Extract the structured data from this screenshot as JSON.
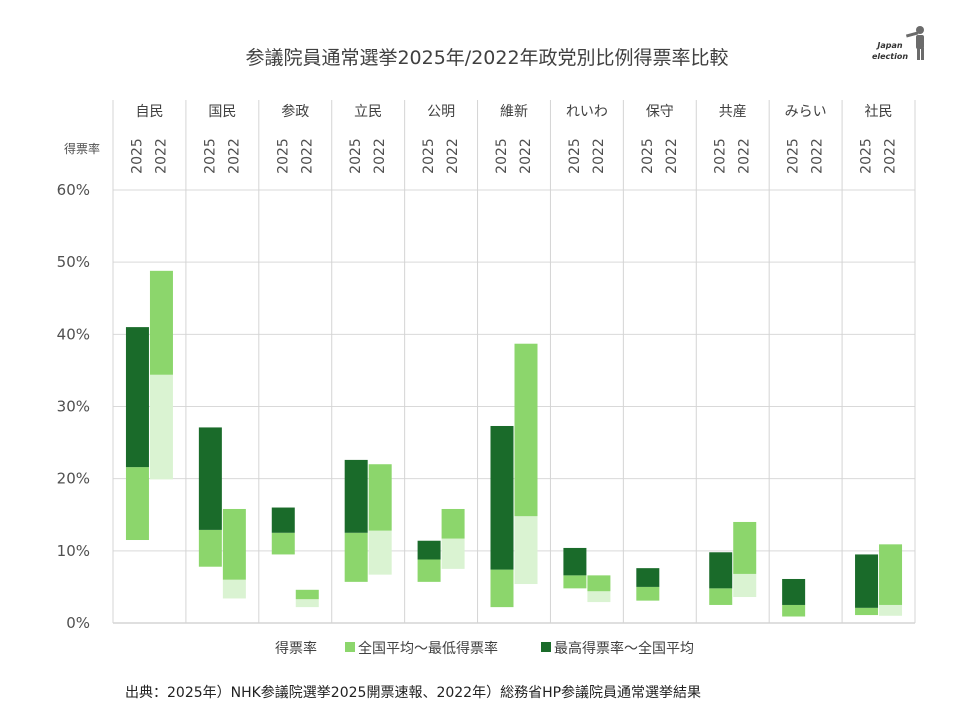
{
  "chart_data": {
    "type": "bar",
    "title": "参議院員通常選挙2025年/2022年政党別比例得票率比較",
    "ylabel": "得票率",
    "ylim": [
      0,
      60
    ],
    "yticks": [
      "0%",
      "10%",
      "20%",
      "30%",
      "40%",
      "50%",
      "60%"
    ],
    "years": [
      "2025",
      "2022"
    ],
    "grid": true,
    "legend_placement": "bottom",
    "legend_title": "得票率",
    "series": [
      {
        "name": "全国平均～最低得票率",
        "color": "#8cd66c",
        "color_faded": "#daf3d2"
      },
      {
        "name": "最高得票率～全国平均",
        "color": "#1a6b2a",
        "color_faded": "#8cd66c"
      }
    ],
    "parties": [
      {
        "name": "自民",
        "bars": [
          {
            "year": "2025",
            "low": 11.5,
            "avg": 21.6,
            "high": 41.0,
            "faded": false
          },
          {
            "year": "2022",
            "low": 19.9,
            "avg": 34.4,
            "high": 48.8,
            "faded": true
          }
        ]
      },
      {
        "name": "国民",
        "bars": [
          {
            "year": "2025",
            "low": 7.8,
            "avg": 12.9,
            "high": 27.1,
            "faded": false
          },
          {
            "year": "2022",
            "low": 3.4,
            "avg": 6.0,
            "high": 15.8,
            "faded": true
          }
        ]
      },
      {
        "name": "参政",
        "bars": [
          {
            "year": "2025",
            "low": 9.5,
            "avg": 12.5,
            "high": 16.0,
            "faded": false
          },
          {
            "year": "2022",
            "low": 2.2,
            "avg": 3.3,
            "high": 4.6,
            "faded": true
          }
        ]
      },
      {
        "name": "立民",
        "bars": [
          {
            "year": "2025",
            "low": 5.7,
            "avg": 12.5,
            "high": 22.6,
            "faded": false
          },
          {
            "year": "2022",
            "low": 6.7,
            "avg": 12.8,
            "high": 22.0,
            "faded": true
          }
        ]
      },
      {
        "name": "公明",
        "bars": [
          {
            "year": "2025",
            "low": 5.7,
            "avg": 8.8,
            "high": 11.4,
            "faded": false
          },
          {
            "year": "2022",
            "low": 7.5,
            "avg": 11.7,
            "high": 15.8,
            "faded": true
          }
        ]
      },
      {
        "name": "維新",
        "bars": [
          {
            "year": "2025",
            "low": 2.2,
            "avg": 7.4,
            "high": 27.3,
            "faded": false
          },
          {
            "year": "2022",
            "low": 5.4,
            "avg": 14.8,
            "high": 38.7,
            "faded": true
          }
        ]
      },
      {
        "name": "れいわ",
        "bars": [
          {
            "year": "2025",
            "low": 4.8,
            "avg": 6.6,
            "high": 10.4,
            "faded": false
          },
          {
            "year": "2022",
            "low": 2.9,
            "avg": 4.4,
            "high": 6.6,
            "faded": true
          }
        ]
      },
      {
        "name": "保守",
        "bars": [
          {
            "year": "2025",
            "low": 3.1,
            "avg": 5.0,
            "high": 7.6,
            "faded": false
          },
          {
            "year": "2022",
            "low": null,
            "avg": null,
            "high": null,
            "faded": true
          }
        ]
      },
      {
        "name": "共産",
        "bars": [
          {
            "year": "2025",
            "low": 2.5,
            "avg": 4.8,
            "high": 9.8,
            "faded": false
          },
          {
            "year": "2022",
            "low": 3.6,
            "avg": 6.8,
            "high": 14.0,
            "faded": true
          }
        ]
      },
      {
        "name": "みらい",
        "bars": [
          {
            "year": "2025",
            "low": 0.9,
            "avg": 2.5,
            "high": 6.1,
            "faded": false
          },
          {
            "year": "2022",
            "low": null,
            "avg": null,
            "high": null,
            "faded": true
          }
        ]
      },
      {
        "name": "社民",
        "bars": [
          {
            "year": "2025",
            "low": 1.1,
            "avg": 2.1,
            "high": 9.5,
            "faded": false
          },
          {
            "year": "2022",
            "low": 1.0,
            "avg": 2.5,
            "high": 10.9,
            "faded": true
          }
        ]
      }
    ]
  },
  "source_text": "出典：2025年）NHK参議院選挙2025開票速報、2022年）総務省HP参議院員通常選挙結果",
  "logo": {
    "line1": "Japan",
    "line2": "election"
  }
}
